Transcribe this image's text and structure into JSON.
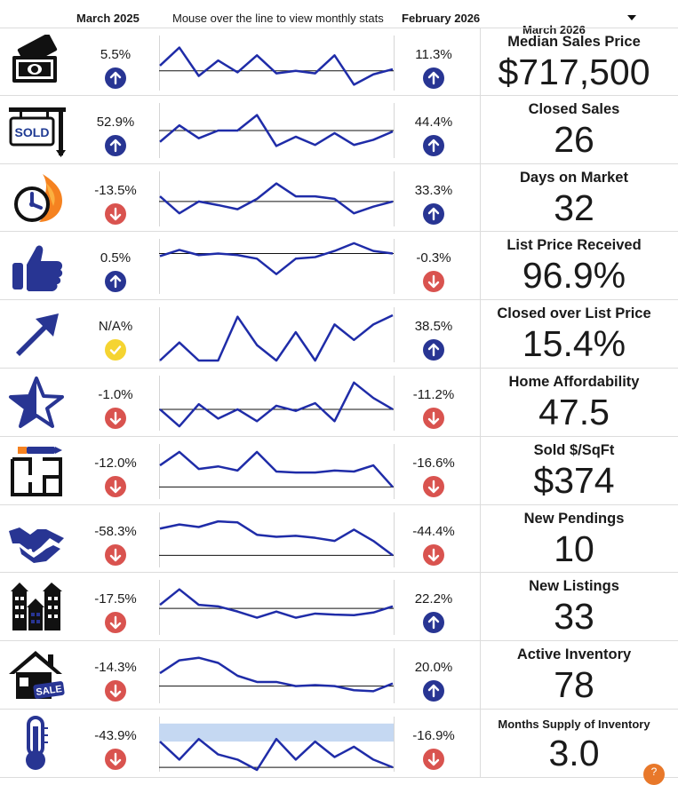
{
  "header": {
    "prev_period": "March 2025",
    "hint": "Mouse over the line to view monthly stats",
    "curr_period": "February 2026",
    "selected_month": "March 2026"
  },
  "colors": {
    "up": "#283593",
    "down": "#d9534f",
    "na": "#f5d431",
    "line": "#1f2ca8",
    "band": "#c5d8f2"
  },
  "rows": [
    {
      "label": "Median Sales Price",
      "value": "$717,500",
      "prev_pct": "5.5%",
      "prev_dir": "up",
      "curr_pct": "11.3%",
      "curr_dir": "up",
      "icon": "money-icon"
    },
    {
      "label": "Closed Sales",
      "value": "26",
      "prev_pct": "52.9%",
      "prev_dir": "up",
      "curr_pct": "44.4%",
      "curr_dir": "up",
      "icon": "sold-sign-icon",
      "icon_text": "SOLD"
    },
    {
      "label": "Days on Market",
      "value": "32",
      "prev_pct": "-13.5%",
      "prev_dir": "down",
      "curr_pct": "33.3%",
      "curr_dir": "up",
      "icon": "clock-flame-icon"
    },
    {
      "label": "List Price Received",
      "value": "96.9%",
      "prev_pct": "0.5%",
      "prev_dir": "up",
      "curr_pct": "-0.3%",
      "curr_dir": "down",
      "icon": "thumbs-up-icon"
    },
    {
      "label": "Closed over List Price",
      "value": "15.4%",
      "prev_pct": "N/A%",
      "prev_dir": "na",
      "curr_pct": "38.5%",
      "curr_dir": "up",
      "icon": "arrow-up-right-icon"
    },
    {
      "label": "Home Affordability",
      "value": "47.5",
      "prev_pct": "-1.0%",
      "prev_dir": "down",
      "curr_pct": "-11.2%",
      "curr_dir": "down",
      "icon": "star-icon"
    },
    {
      "label": "Sold $/SqFt",
      "value": "$374",
      "prev_pct": "-12.0%",
      "prev_dir": "down",
      "curr_pct": "-16.6%",
      "curr_dir": "down",
      "icon": "floor-plan-icon"
    },
    {
      "label": "New Pendings",
      "value": "10",
      "prev_pct": "-58.3%",
      "prev_dir": "down",
      "curr_pct": "-44.4%",
      "curr_dir": "down",
      "icon": "handshake-icon"
    },
    {
      "label": "New Listings",
      "value": "33",
      "prev_pct": "-17.5%",
      "prev_dir": "down",
      "curr_pct": "22.2%",
      "curr_dir": "up",
      "icon": "houses-icon"
    },
    {
      "label": "Active Inventory",
      "value": "78",
      "prev_pct": "-14.3%",
      "prev_dir": "down",
      "curr_pct": "20.0%",
      "curr_dir": "up",
      "icon": "house-sale-icon",
      "icon_text": "SALE"
    },
    {
      "label": "Months Supply of Inventory",
      "value": "3.0",
      "prev_pct": "-43.9%",
      "prev_dir": "down",
      "curr_pct": "-16.9%",
      "curr_dir": "down",
      "icon": "thermometer-icon"
    }
  ],
  "chart_data": [
    {
      "type": "line",
      "metric": "Median Sales Price",
      "values": [
        0.45,
        0.8,
        0.25,
        0.55,
        0.32,
        0.65,
        0.3,
        0.35,
        0.3,
        0.65,
        0.08,
        0.28,
        0.38
      ],
      "baseline": 0.35
    },
    {
      "type": "line",
      "metric": "Closed Sales",
      "values": [
        0.28,
        0.6,
        0.35,
        0.5,
        0.5,
        0.8,
        0.2,
        0.38,
        0.22,
        0.45,
        0.22,
        0.32,
        0.48
      ],
      "baseline": 0.5
    },
    {
      "type": "line",
      "metric": "Days on Market",
      "values": [
        0.55,
        0.22,
        0.45,
        0.38,
        0.3,
        0.5,
        0.8,
        0.55,
        0.55,
        0.5,
        0.22,
        0.35,
        0.45
      ],
      "baseline": 0.45
    },
    {
      "type": "line",
      "metric": "List Price Received",
      "values": [
        0.7,
        0.82,
        0.72,
        0.75,
        0.72,
        0.65,
        0.35,
        0.65,
        0.68,
        0.8,
        0.95,
        0.8,
        0.75
      ],
      "baseline": 0.75
    },
    {
      "type": "line",
      "metric": "Closed over List Price",
      "values": [
        0.0,
        0.35,
        0.0,
        0.0,
        0.85,
        0.3,
        0.0,
        0.55,
        0.0,
        0.7,
        0.4,
        0.7,
        0.88
      ]
    },
    {
      "type": "line",
      "metric": "Home Affordability",
      "values": [
        0.38,
        0.05,
        0.48,
        0.2,
        0.38,
        0.15,
        0.45,
        0.35,
        0.5,
        0.15,
        0.9,
        0.6,
        0.38
      ],
      "baseline": 0.38
    },
    {
      "type": "line",
      "metric": "Sold $/SqFt",
      "values": [
        0.62,
        0.88,
        0.55,
        0.6,
        0.52,
        0.88,
        0.5,
        0.48,
        0.48,
        0.52,
        0.5,
        0.62,
        0.2
      ],
      "baseline": 0.2
    },
    {
      "type": "line",
      "metric": "New Pendings",
      "values": [
        0.72,
        0.8,
        0.75,
        0.86,
        0.84,
        0.6,
        0.56,
        0.58,
        0.54,
        0.48,
        0.7,
        0.48,
        0.2
      ],
      "baseline": 0.2
    },
    {
      "type": "line",
      "metric": "New Listings",
      "values": [
        0.55,
        0.85,
        0.55,
        0.52,
        0.42,
        0.3,
        0.42,
        0.3,
        0.38,
        0.36,
        0.35,
        0.4,
        0.52
      ],
      "baseline": 0.48
    },
    {
      "type": "line",
      "metric": "Active Inventory",
      "values": [
        0.55,
        0.8,
        0.85,
        0.75,
        0.5,
        0.38,
        0.38,
        0.3,
        0.32,
        0.3,
        0.22,
        0.2,
        0.35
      ],
      "baseline": 0.3
    },
    {
      "type": "line",
      "metric": "Months Supply of Inventory",
      "values": [
        0.55,
        0.2,
        0.6,
        0.3,
        0.2,
        0.0,
        0.6,
        0.2,
        0.55,
        0.25,
        0.45,
        0.2,
        0.05
      ],
      "baseline": 0.05,
      "band": [
        0.55,
        0.9
      ]
    }
  ]
}
